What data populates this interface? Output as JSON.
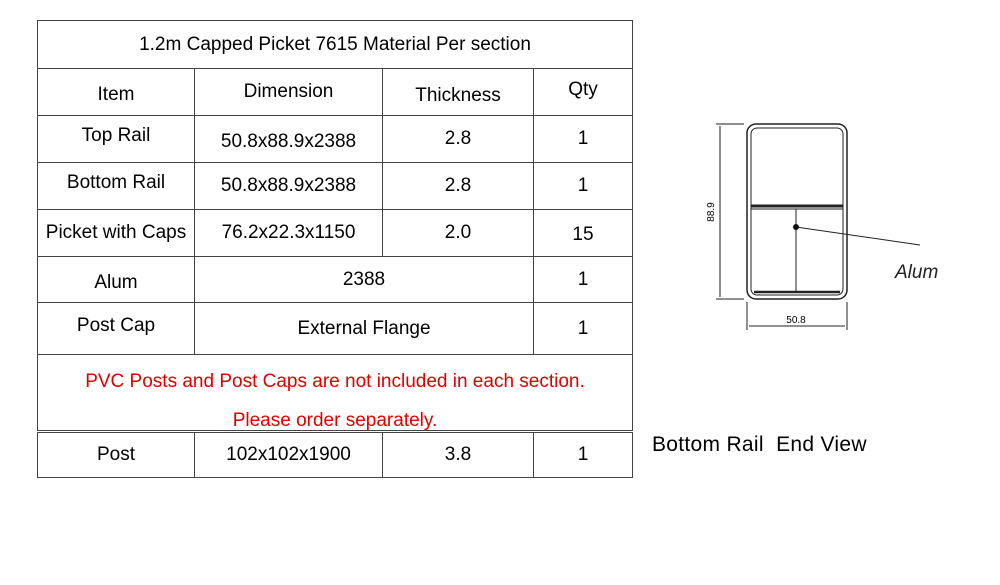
{
  "table": {
    "title": "1.2m Capped Picket 7615 Material Per section",
    "headers": [
      "Item",
      "Dimension",
      "Thickness",
      "Qty"
    ],
    "rows": [
      {
        "item": "Top Rail",
        "dimension": "50.8x88.9x2388",
        "thickness": "2.8",
        "qty": "1"
      },
      {
        "item": "Bottom Rail",
        "dimension": "50.8x88.9x2388",
        "thickness": "2.8",
        "qty": "1"
      },
      {
        "item": "Picket with Caps",
        "dimension": "76.2x22.3x1150",
        "thickness": "2.0",
        "qty": "15"
      },
      {
        "item": "Alum",
        "dimension": "2388",
        "qty": "1"
      },
      {
        "item": "Post Cap",
        "dimension": "External Flange",
        "qty": "1"
      }
    ],
    "note_line1": "PVC Posts and Post Caps are not included in each section.",
    "note_line2": "Please order separately.",
    "note_color": "#e00000",
    "post_row": {
      "item": "Post",
      "dimension": "102x102x1900",
      "thickness": "3.8",
      "qty": "1"
    }
  },
  "diagram": {
    "height_label": "88.9",
    "width_label": "50.8",
    "callout_label": "Alum",
    "caption": "Bottom Rail  End View"
  }
}
